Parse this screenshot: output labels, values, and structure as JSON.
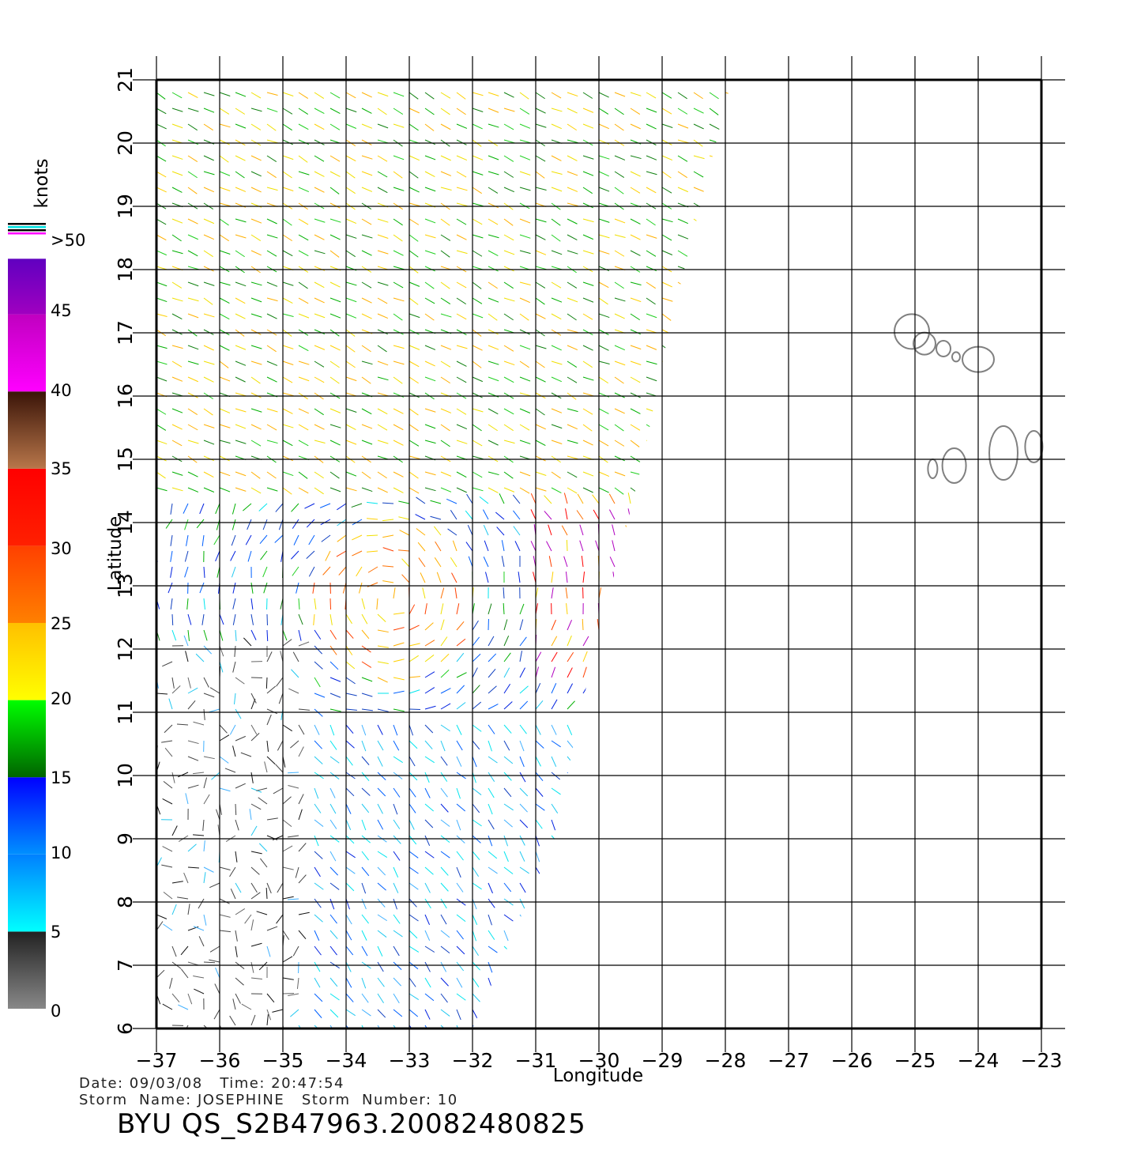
{
  "map": {
    "xlabel": "Longitude",
    "ylabel": "Latitude",
    "lon_range": [
      -37,
      -23
    ],
    "lat_range": [
      6,
      21
    ],
    "lon_ticks": [
      "−37",
      "−36",
      "−35",
      "−34",
      "−33",
      "−32",
      "−31",
      "−30",
      "−29",
      "−28",
      "−27",
      "−26",
      "−25",
      "−24",
      "−23"
    ],
    "lat_ticks": [
      "6",
      "7",
      "8",
      "9",
      "10",
      "11",
      "12",
      "13",
      "14",
      "15",
      "16",
      "17",
      "18",
      "19",
      "20",
      "21"
    ],
    "grid": true,
    "swath_edge_east_lon": [
      [
        6,
        -32.0
      ],
      [
        9,
        -30.7
      ],
      [
        11,
        -30.3
      ],
      [
        13,
        -29.8
      ],
      [
        15,
        -29.3
      ],
      [
        17,
        -28.9
      ],
      [
        19,
        -28.4
      ],
      [
        21,
        -27.9
      ]
    ],
    "land_outline_color": "#808080"
  },
  "colorbar": {
    "unit": "knots",
    "labels": [
      "0",
      "5",
      "10",
      "15",
      "20",
      "25",
      "30",
      "35",
      "40",
      "45",
      ">50"
    ],
    "segments": [
      {
        "from": 0,
        "to": 5,
        "colors": [
          "#888888",
          "#222222"
        ]
      },
      {
        "from": 5,
        "to": 10,
        "colors": [
          "#00ffff",
          "#0080ff"
        ]
      },
      {
        "from": 10,
        "to": 15,
        "colors": [
          "#0090ff",
          "#0000ff"
        ]
      },
      {
        "from": 15,
        "to": 20,
        "colors": [
          "#006400",
          "#00ff00"
        ]
      },
      {
        "from": 20,
        "to": 25,
        "colors": [
          "#ffff00",
          "#ffc000"
        ]
      },
      {
        "from": 25,
        "to": 30,
        "colors": [
          "#ff8000",
          "#ff4000"
        ]
      },
      {
        "from": 30,
        "to": 35,
        "colors": [
          "#ff2000",
          "#ff0000"
        ]
      },
      {
        "from": 35,
        "to": 40,
        "colors": [
          "#b8764a",
          "#3a1408"
        ]
      },
      {
        "from": 40,
        "to": 45,
        "colors": [
          "#ff00ff",
          "#c000c0"
        ]
      },
      {
        "from": 45,
        "to": 50,
        "colors": [
          "#a000c0",
          "#6000c0"
        ]
      }
    ]
  },
  "footer": {
    "line1": "Date: 09/03/08   Time: 20:47:54",
    "line2": "Storm  Name: JOSEPHINE   Storm  Number: 10",
    "id": "BYU  QS_S2B47963.20082480825"
  }
}
